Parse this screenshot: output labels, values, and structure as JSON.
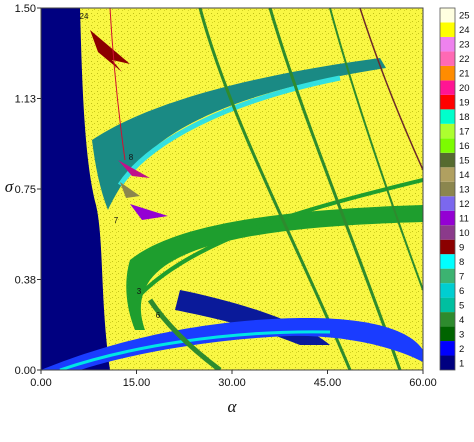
{
  "chart_data": {
    "type": "heatmap",
    "title": "",
    "xlabel": "α",
    "ylabel": "σ",
    "xlim": [
      0,
      60
    ],
    "ylim": [
      0,
      1.5
    ],
    "xticks": [
      "0.00",
      "15.00",
      "30.00",
      "45.00",
      "60.00"
    ],
    "yticks": [
      "0.00",
      "0.38",
      "0.75",
      "1.13",
      "1.50"
    ],
    "colorbar": {
      "labels": [
        "1",
        "2",
        "3",
        "4",
        "5",
        "6",
        "7",
        "8",
        "9",
        "10",
        "11",
        "12",
        "13",
        "14",
        "15",
        "16",
        "17",
        "18",
        "19",
        "20",
        "21",
        "22",
        "23",
        "24",
        "25"
      ],
      "colors": [
        "#000080",
        "#0000ff",
        "#006400",
        "#2e8b2e",
        "#00bfa0",
        "#00ced1",
        "#3cb371",
        "#00ffff",
        "#8b0000",
        "#8b3a8b",
        "#9400d3",
        "#7b68ee",
        "#8b864e",
        "#b0a060",
        "#556b2f",
        "#7cfc00",
        "#adff2f",
        "#00ffcc",
        "#ff0000",
        "#ff1493",
        "#ff8c00",
        "#ff69b4",
        "#ee82ee",
        "#ffff00",
        "#ffffe0"
      ]
    },
    "region_labels": [
      "24",
      "8",
      "7",
      "3",
      "6"
    ]
  }
}
